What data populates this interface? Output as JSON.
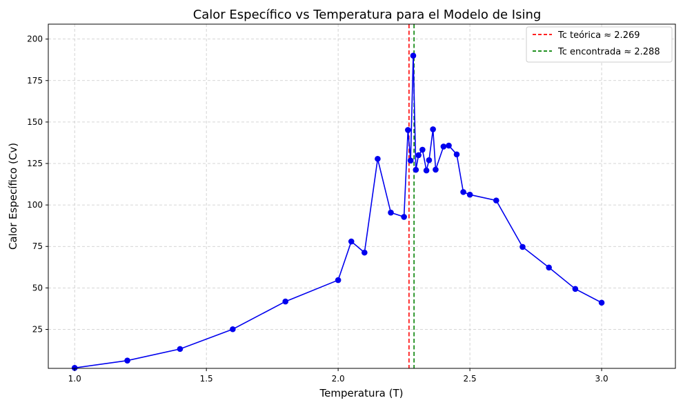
{
  "chart_data": {
    "type": "line",
    "title": "Calor Específico vs Temperatura para el Modelo de Ising",
    "xlabel": "Temperatura (T)",
    "ylabel": "Calor Específico (Cv)",
    "xlim": [
      0.9,
      3.28
    ],
    "ylim": [
      1.5,
      209
    ],
    "xticks": [
      1.0,
      1.5,
      2.0,
      2.5,
      3.0
    ],
    "xtick_labels": [
      "1.0",
      "1.5",
      "2.0",
      "2.5",
      "3.0"
    ],
    "yticks": [
      25,
      50,
      75,
      100,
      125,
      150,
      175,
      200
    ],
    "ytick_labels": [
      "25",
      "50",
      "75",
      "100",
      "125",
      "150",
      "175",
      "200"
    ],
    "grid": true,
    "legend_position": "top-right",
    "series": [
      {
        "color": "#0000ee",
        "marker": "circle",
        "x": [
          1.0,
          1.2,
          1.4,
          1.6,
          1.8,
          2.0,
          2.05,
          2.1,
          2.15,
          2.2,
          2.25,
          2.265,
          2.275,
          2.285,
          2.295,
          2.305,
          2.32,
          2.335,
          2.345,
          2.36,
          2.37,
          2.4,
          2.42,
          2.45,
          2.475,
          2.5,
          2.6,
          2.7,
          2.8,
          2.9,
          3.0
        ],
        "values": [
          1.8,
          6.2,
          13.2,
          25.1,
          41.8,
          54.7,
          78.0,
          71.3,
          127.8,
          95.4,
          92.8,
          145.2,
          126.8,
          190.0,
          121.2,
          130.0,
          133.3,
          120.8,
          127.0,
          145.6,
          121.3,
          135.2,
          135.8,
          130.5,
          107.8,
          106.2,
          102.7,
          74.7,
          62.3,
          49.4,
          41.1
        ]
      }
    ],
    "reference_lines": [
      {
        "x": 2.269,
        "color": "#ff0000",
        "style": "dashed",
        "label": "Tc teórica ≈ 2.269"
      },
      {
        "x": 2.288,
        "color": "#008000",
        "style": "dashed",
        "label": "Tc encontrada ≈ 2.288"
      }
    ],
    "colors": {
      "line": "#0000ee",
      "grid": "#c8c8c8",
      "axes": "#000000"
    }
  }
}
